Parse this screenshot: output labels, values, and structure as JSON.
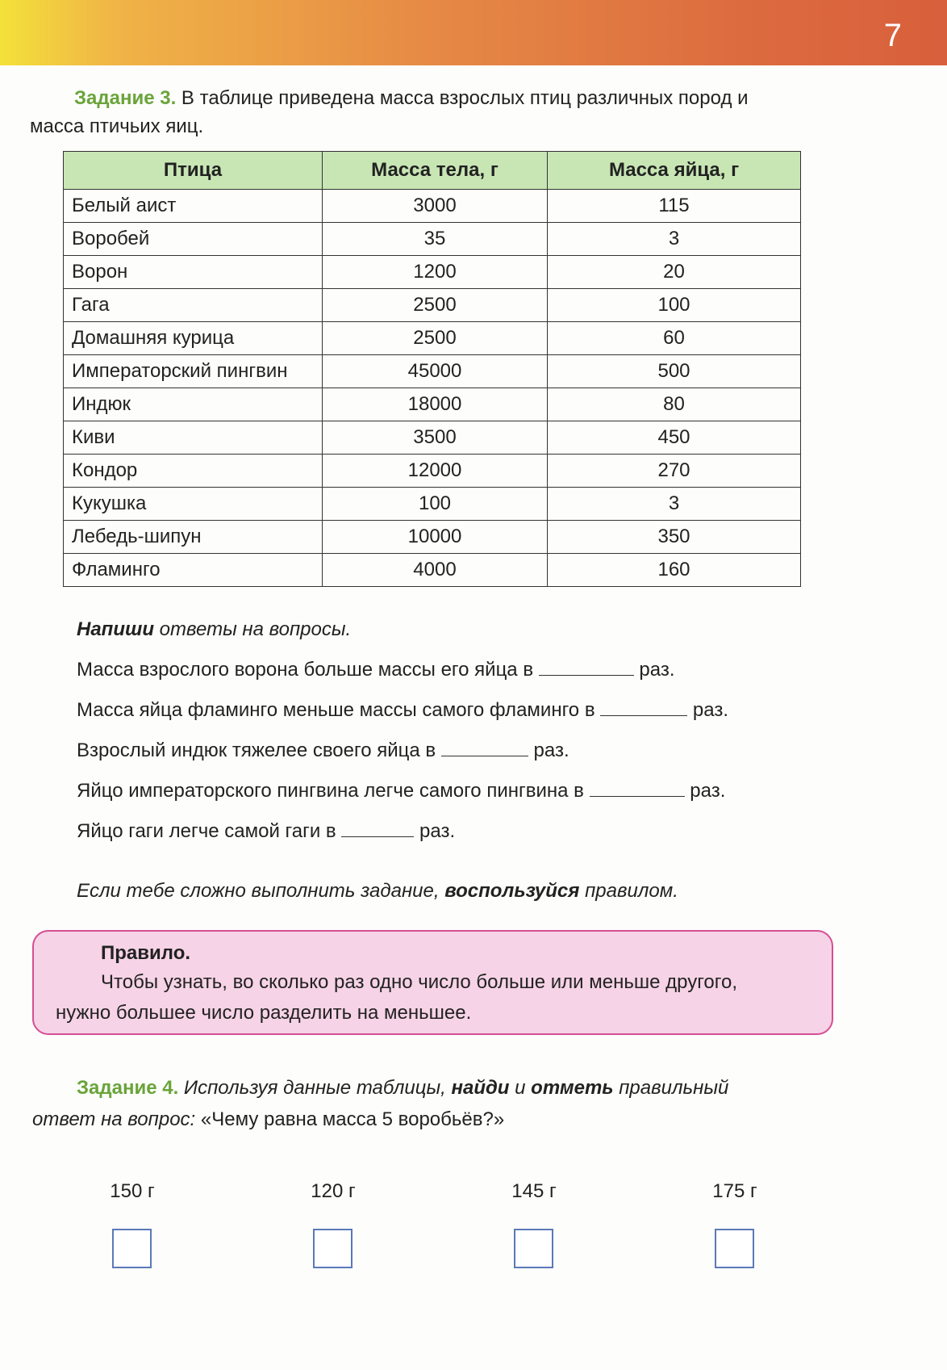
{
  "page_number": "7",
  "task3": {
    "label": "Задание 3.",
    "text1": " В таблице приведена масса взрослых птиц различных пород и",
    "text2": "масса птичьих яиц."
  },
  "table": {
    "headers": [
      "Птица",
      "Масса тела, г",
      "Масса яйца, г"
    ],
    "rows": [
      [
        "Белый аист",
        "3000",
        "115"
      ],
      [
        "Воробей",
        "35",
        "3"
      ],
      [
        "Ворон",
        "1200",
        "20"
      ],
      [
        "Гага",
        "2500",
        "100"
      ],
      [
        "Домашняя курица",
        "2500",
        "60"
      ],
      [
        "Императорский пингвин",
        "45000",
        "500"
      ],
      [
        "Индюк",
        "18000",
        "80"
      ],
      [
        "Киви",
        "3500",
        "450"
      ],
      [
        "Кондор",
        "12000",
        "270"
      ],
      [
        "Кукушка",
        "100",
        "3"
      ],
      [
        "Лебедь-шипун",
        "10000",
        "350"
      ],
      [
        "Фламинго",
        "4000",
        "160"
      ]
    ]
  },
  "questions": {
    "intro_bold": "Напиши",
    "intro_rest": " ответы на вопросы.",
    "items": [
      {
        "before": "Масса взрослого ворона больше массы его яйца в",
        "after": "раз."
      },
      {
        "before": "Масса яйца фламинго меньше массы самого фламинго в",
        "after": "раз."
      },
      {
        "before": "Взрослый индюк тяжелее своего яйца в",
        "after": "раз."
      },
      {
        "before": "Яйцо императорского пингвина легче самого пингвина в",
        "after": "раз."
      },
      {
        "before": "Яйцо гаги легче самой гаги в",
        "after": "раз."
      }
    ]
  },
  "hint": {
    "a": "Если тебе сложно выполнить задание, ",
    "b": "воспользуйся",
    "c": " правилом."
  },
  "rule": {
    "title": "Правило.",
    "line1": "Чтобы узнать, во сколько раз одно число больше или меньше другого,",
    "line2": "нужно большее число разделить на меньшее."
  },
  "task4": {
    "label": "Задание 4.",
    "t1": " Используя данные таблицы, ",
    "b1": "найди",
    "t2": " и ",
    "b2": "отметь",
    "t3": " правильный",
    "t4": "ответ на вопрос: ",
    "quote": "«Чему равна масса 5 воробьёв?»"
  },
  "options": [
    "150 г",
    "120 г",
    "145 г",
    "175 г"
  ]
}
